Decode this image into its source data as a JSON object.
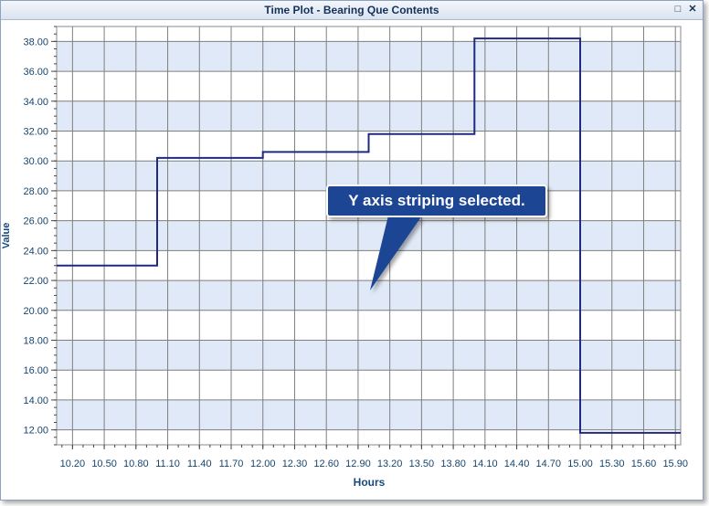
{
  "window": {
    "title": "Time Plot - Bearing Que Contents",
    "maximize_icon": "maximize-icon",
    "close_icon": "close-icon"
  },
  "callout": {
    "text": "Y axis striping selected."
  },
  "colors": {
    "line": "#1f2a80",
    "grid": "#7f7f7f",
    "tick_label": "#15456e",
    "axis_title": "#1a4a7a",
    "stripe": "#dfe9f7",
    "callout_fill": "#1c4594"
  },
  "chart_data": {
    "type": "line",
    "step": true,
    "xlabel": "Hours",
    "ylabel": "Value",
    "xlim": [
      10.05,
      15.95
    ],
    "ylim": [
      11.0,
      39.0
    ],
    "x_ticks": [
      10.2,
      10.5,
      10.8,
      11.1,
      11.4,
      11.7,
      12.0,
      12.3,
      12.6,
      12.9,
      13.2,
      13.5,
      13.8,
      14.1,
      14.4,
      14.7,
      15.0,
      15.3,
      15.6,
      15.9
    ],
    "x_tick_labels": [
      "10.20",
      "10.50",
      "10.80",
      "11.10",
      "11.40",
      "11.70",
      "12.00",
      "12.30",
      "12.60",
      "12.90",
      "13.20",
      "13.50",
      "13.80",
      "14.10",
      "14.40",
      "14.70",
      "15.00",
      "15.30",
      "15.60",
      "15.90"
    ],
    "y_ticks": [
      12,
      14,
      16,
      18,
      20,
      22,
      24,
      26,
      28,
      30,
      32,
      34,
      36,
      38
    ],
    "y_tick_labels": [
      "12.00",
      "14.00",
      "16.00",
      "18.00",
      "20.00",
      "22.00",
      "24.00",
      "26.00",
      "28.00",
      "30.00",
      "32.00",
      "34.00",
      "36.00",
      "38.00"
    ],
    "grid": true,
    "y_striping": true,
    "series": [
      {
        "x": [
          10.05,
          11.0,
          11.0,
          12.0,
          12.0,
          13.0,
          13.0,
          14.0,
          14.0,
          15.0,
          15.0,
          15.95
        ],
        "y": [
          23.0,
          23.0,
          30.2,
          30.2,
          30.6,
          30.6,
          31.8,
          31.8,
          38.2,
          38.2,
          11.8,
          11.8
        ]
      }
    ]
  }
}
